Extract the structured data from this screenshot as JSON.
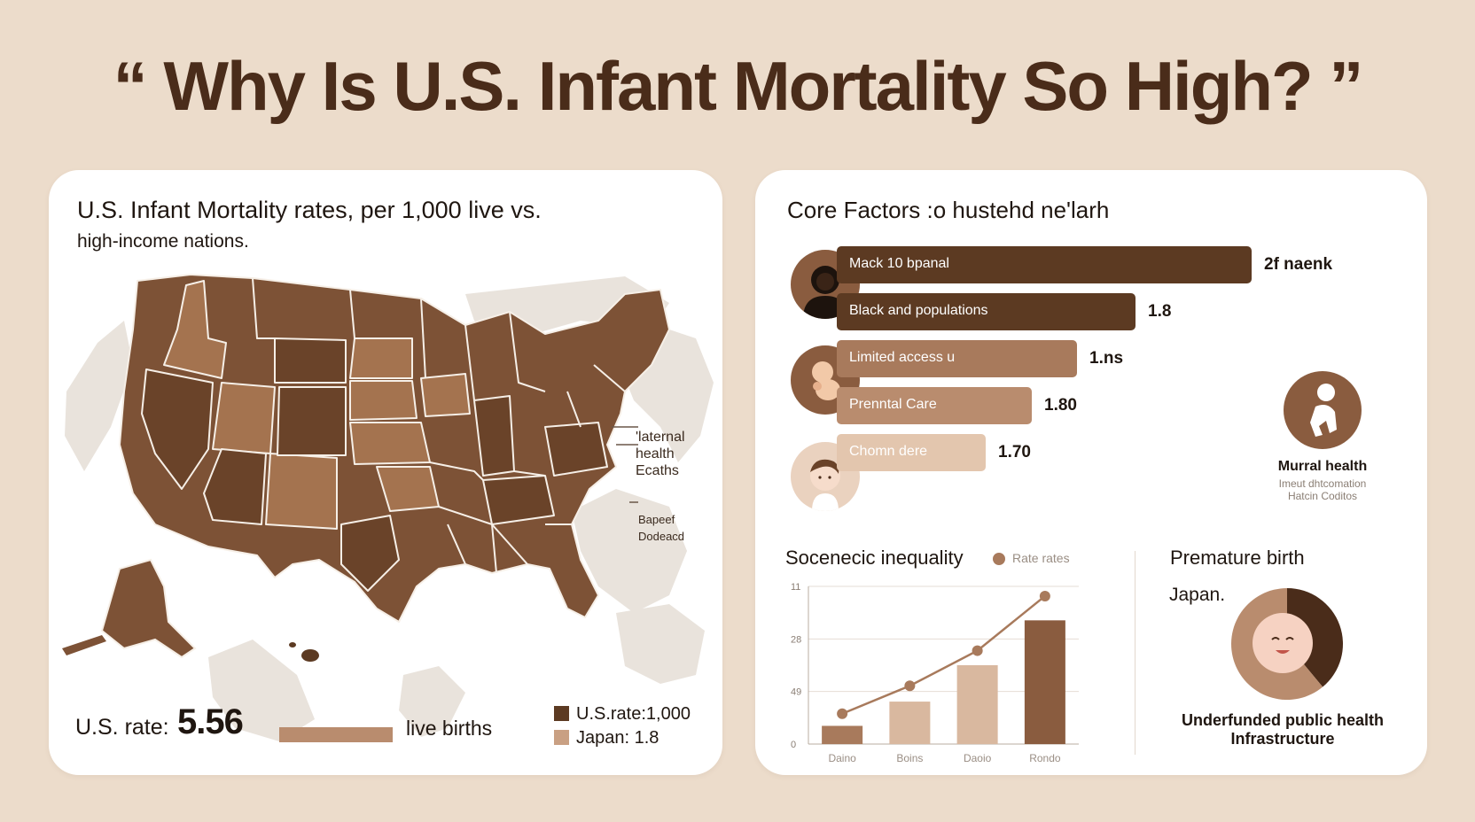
{
  "title": "“ Why Is U.S. Infant Mortality So High? ”",
  "colors": {
    "background": "#ecdccb",
    "dark_brown": "#5c3a22",
    "mid_brown": "#8a5c3f",
    "light_brown": "#b98c6e",
    "pale_brown": "#e3c6ae",
    "title_brown": "#4a2c1a"
  },
  "map_panel": {
    "title": "U.S. Infant Mortality rates, per 1,000 live  vs.",
    "subtitle": "high-income nations.",
    "note_maternal": [
      "'laternal",
      "health",
      "Ecaths"
    ],
    "note_other": [
      "Bapeef",
      "Dodeacd"
    ],
    "us_rate_label": "U.S. rate:",
    "us_rate_value": "5.56",
    "live_births_label": "live births",
    "legend": [
      {
        "label": "U.S.rate:1,000",
        "color": "#5c3a22"
      },
      {
        "label": "Japan: 1.8",
        "color": "#c9a083"
      }
    ]
  },
  "factors_panel": {
    "title": "Core Factors :o hustehd  ne'larh",
    "side_callout": {
      "icon": "toddler-icon",
      "title": "Murral health",
      "subtitle": [
        "Imeut dhtcomation",
        "Hatcin Coditos"
      ]
    }
  },
  "inequality_panel": {
    "title": "Socenecic inequality",
    "legend_label": "Rate rates"
  },
  "premature_panel": {
    "title": "Premature birth",
    "subtitle": "Japan.",
    "caption": [
      "Underfunded public health",
      "Infrastructure"
    ]
  },
  "chart_data": [
    {
      "type": "bar",
      "orientation": "horizontal",
      "categories": [
        "Mack 10 bpanal",
        "Black and populations",
        "Limited access u",
        "Prenntal Care",
        "Chomn dere"
      ],
      "value_labels": [
        "2f naenk",
        "1.8",
        "1.ns",
        "1.80",
        "1.70"
      ],
      "icons": [
        "mother-icon",
        "",
        "infant-icon",
        "",
        "baby-icon"
      ],
      "bar_colors": [
        "#5c3a22",
        "#5c3a22",
        "#a87a5c",
        "#b98c6e",
        "#e3c6ae"
      ],
      "relative_lengths": [
        1.0,
        0.72,
        0.58,
        0.47,
        0.36
      ]
    },
    {
      "type": "bar",
      "title": "Socenecic inequality",
      "y_tick_labels": [
        "11",
        "28",
        "49",
        "0"
      ],
      "categories": [
        "Daino",
        "Boins",
        "Daoio",
        "Rondo"
      ],
      "values": [
        1.5,
        3.5,
        6.5,
        10.2
      ],
      "line": {
        "name": "Rate rates",
        "values": [
          2.5,
          4.8,
          7.7,
          12.2
        ]
      },
      "bar_colors": [
        "#a87a5c",
        "#d9b89f",
        "#d9b89f",
        "#8a5c3f"
      ],
      "ylim": [
        0,
        13
      ],
      "grid": true
    },
    {
      "type": "pie",
      "title": "Premature birth",
      "slices": [
        {
          "value": 39,
          "color": "#4a2c1a"
        },
        {
          "value": 61,
          "color": "#b98c6e"
        }
      ]
    }
  ]
}
